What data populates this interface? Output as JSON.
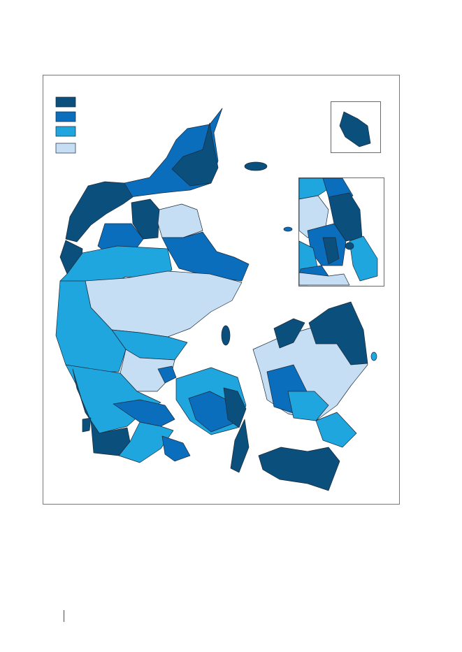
{
  "legend": {
    "colors": [
      "#0b4f7c",
      "#0a6ebd",
      "#1fa6de",
      "#c5def3"
    ]
  }
}
